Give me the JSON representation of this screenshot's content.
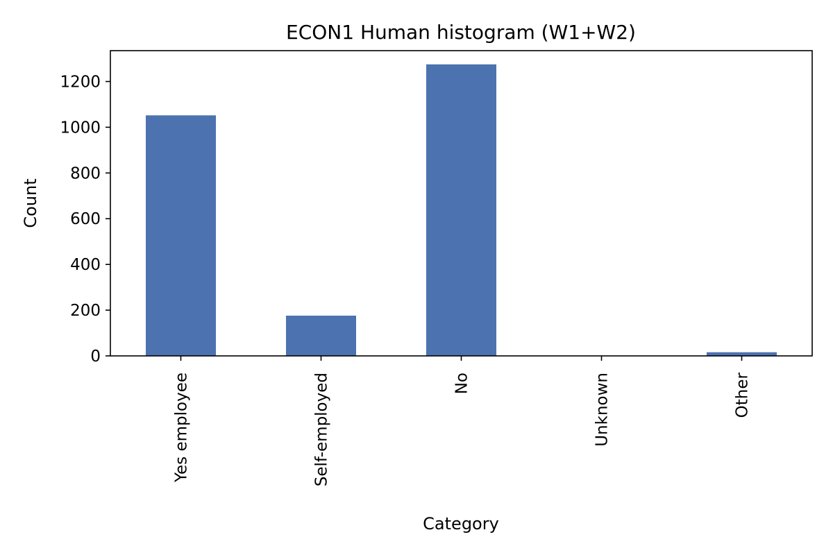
{
  "chart_data": {
    "type": "bar",
    "title": "ECON1 Human histogram (W1+W2)",
    "xlabel": "Category",
    "ylabel": "Count",
    "categories": [
      "Yes employee",
      "Self-employed",
      "No",
      "Unknown",
      "Other"
    ],
    "values": [
      1052,
      176,
      1275,
      0,
      16
    ],
    "ylim": [
      0,
      1335
    ],
    "yticks": [
      0,
      200,
      400,
      600,
      800,
      1000,
      1200
    ],
    "bar_color": "#4c72b0",
    "grid": false,
    "legend": "none",
    "x_tick_rotation": "vertical"
  }
}
